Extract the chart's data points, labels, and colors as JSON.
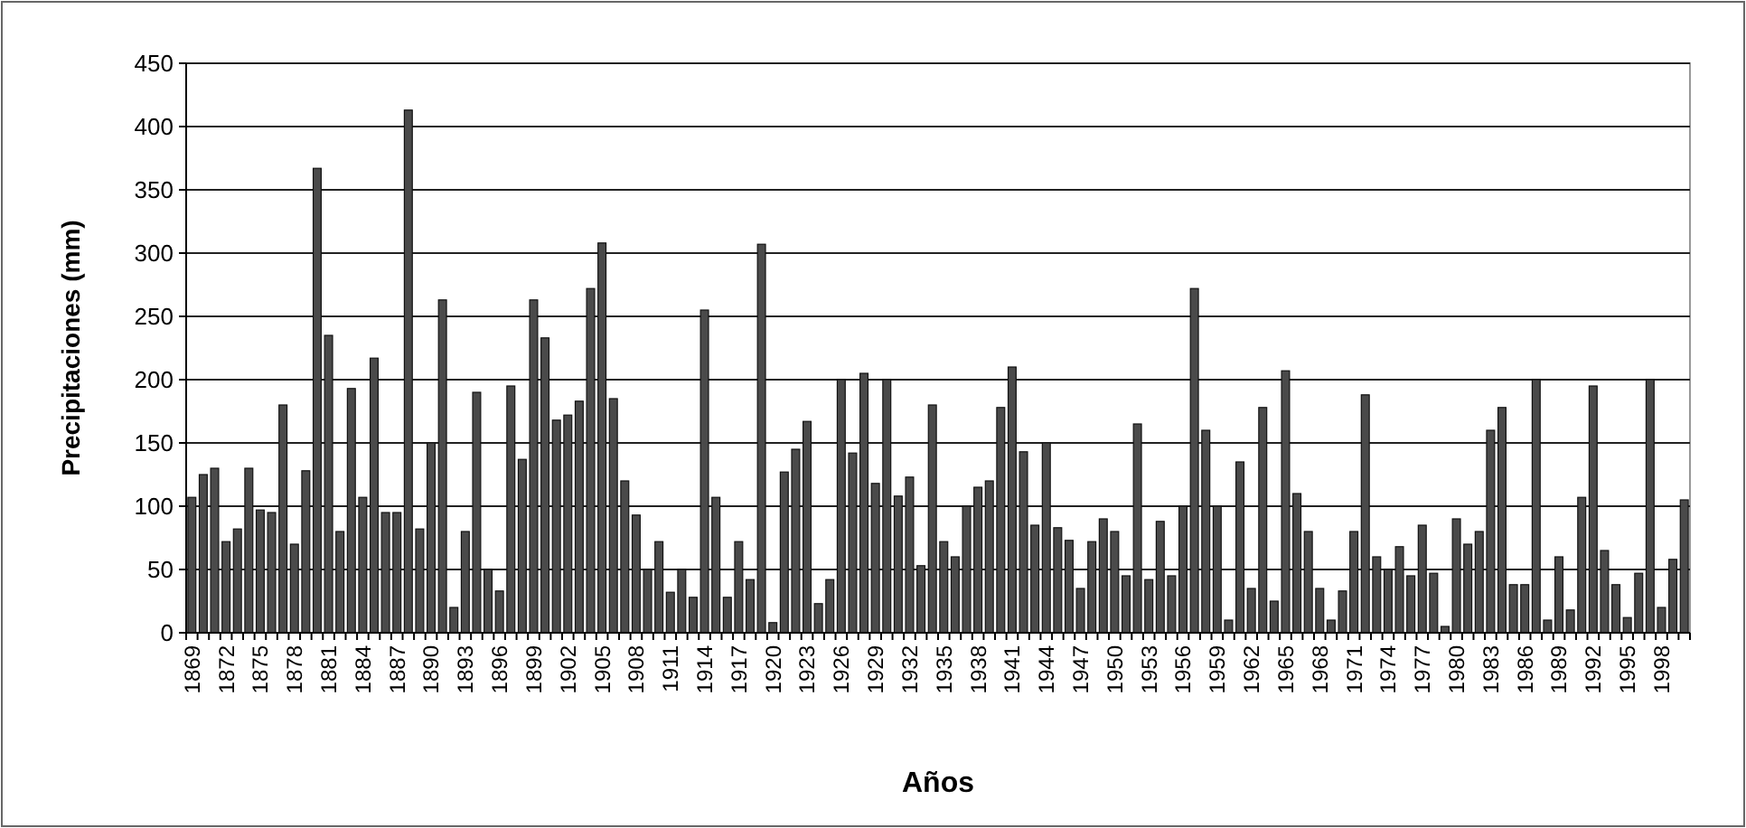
{
  "chart_data": {
    "type": "bar",
    "xlabel": "Años",
    "ylabel": "Precipitaciones (mm)",
    "categories": [
      "1869",
      null,
      null,
      "1872",
      null,
      null,
      "1875",
      null,
      null,
      "1878",
      null,
      null,
      "1881",
      null,
      null,
      "1884",
      null,
      null,
      "1887",
      null,
      null,
      "1890",
      null,
      null,
      "1893",
      null,
      null,
      "1896",
      null,
      null,
      "1899",
      null,
      null,
      "1902",
      null,
      null,
      "1905",
      null,
      null,
      "1908",
      null,
      null,
      "1911",
      null,
      null,
      "1914",
      null,
      null,
      "1917",
      null,
      null,
      "1920",
      null,
      null,
      "1923",
      null,
      null,
      "1926",
      null,
      null,
      "1929",
      null,
      null,
      "1932",
      null,
      null,
      "1935",
      null,
      null,
      "1938",
      null,
      null,
      "1941",
      null,
      null,
      "1944",
      null,
      null,
      "1947",
      null,
      null,
      "1950",
      null,
      null,
      "1953",
      null,
      null,
      "1956",
      null,
      null,
      "1959",
      null,
      null,
      "1962",
      null,
      null,
      "1965",
      null,
      null,
      "1968",
      null,
      null,
      "1971",
      null,
      null,
      "1974",
      null,
      null,
      "1977",
      null,
      null,
      "1980",
      null,
      null,
      "1983",
      null,
      null,
      "1986",
      null,
      null,
      "1989",
      null,
      null,
      "1992",
      null,
      null,
      "1995",
      null,
      null,
      "1998",
      null,
      null
    ],
    "values": [
      107,
      125,
      130,
      72,
      82,
      130,
      97,
      95,
      180,
      70,
      128,
      367,
      235,
      80,
      193,
      107,
      217,
      95,
      95,
      413,
      82,
      150,
      263,
      20,
      80,
      190,
      50,
      33,
      195,
      137,
      263,
      233,
      168,
      172,
      183,
      272,
      308,
      185,
      120,
      93,
      50,
      72,
      32,
      50,
      28,
      255,
      107,
      28,
      72,
      42,
      307,
      8,
      127,
      145,
      167,
      23,
      42,
      200,
      142,
      205,
      118,
      200,
      108,
      123,
      53,
      180,
      72,
      60,
      100,
      115,
      120,
      178,
      210,
      143,
      85,
      150,
      83,
      73,
      35,
      72,
      90,
      80,
      45,
      165,
      42,
      88,
      45,
      100,
      272,
      160,
      100,
      10,
      135,
      35,
      178,
      25,
      207,
      110,
      80,
      35,
      10,
      33,
      80,
      188,
      60,
      50,
      68,
      45,
      85,
      47,
      5,
      90,
      70,
      80,
      160,
      178,
      38,
      38,
      200,
      10,
      60,
      18,
      107,
      195,
      65,
      38,
      12,
      47,
      200,
      20,
      58,
      105
    ],
    "color": "#4a4a4a",
    "ylim": [
      0,
      450
    ],
    "yticks": [
      0,
      50,
      100,
      150,
      200,
      250,
      300,
      350,
      400,
      450
    ],
    "grid": "y"
  }
}
